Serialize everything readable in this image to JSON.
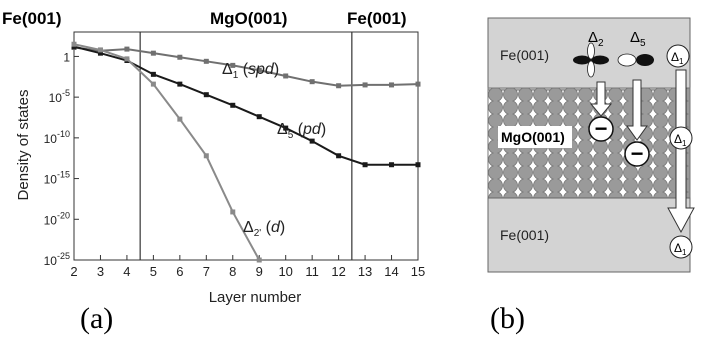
{
  "panel_a": {
    "caption": "(a)",
    "region_labels": [
      "Fe(001)",
      "MgO(001)",
      "Fe(001)"
    ],
    "ylabel": "Density of states",
    "xlabel": "Layer number",
    "chart_data": {
      "type": "line",
      "xlabel": "Layer number",
      "ylabel": "Density of states",
      "xlim": [
        2,
        15
      ],
      "ylim_log10": [
        -25,
        3
      ],
      "x_ticks": [
        "2",
        "3",
        "4",
        "5",
        "6",
        "7",
        "8",
        "9",
        "10",
        "11",
        "12",
        "13",
        "14",
        "15"
      ],
      "y_ticks": [
        {
          "base": "1",
          "exp": ""
        },
        {
          "base": "10",
          "exp": "-5"
        },
        {
          "base": "10",
          "exp": "-10"
        },
        {
          "base": "10",
          "exp": "-15"
        },
        {
          "base": "10",
          "exp": "-20"
        },
        {
          "base": "10",
          "exp": "-25"
        }
      ],
      "y_tick_values_log10": [
        0,
        -5,
        -10,
        -15,
        -20,
        -25
      ],
      "interface_lines_x": [
        4.5,
        12.5
      ],
      "series": [
        {
          "name_main": "Δ",
          "name_sub": "1",
          "name_paren_open": " (",
          "name_orbital": "spd",
          "name_paren_close": ")",
          "color": "#707070",
          "x": [
            2,
            3,
            4,
            5,
            6,
            7,
            8,
            9,
            10,
            11,
            12,
            13,
            14,
            15
          ],
          "log10_y": [
            1.1,
            0.7,
            0.9,
            0.4,
            -0.1,
            -0.6,
            -1.1,
            -1.7,
            -2.4,
            -3.1,
            -3.6,
            -3.5,
            -3.5,
            -3.4
          ]
        },
        {
          "name_main": "Δ",
          "name_sub": "5",
          "name_paren_open": " (",
          "name_orbital": "pd",
          "name_paren_close": ")",
          "color": "#1a1a1a",
          "x": [
            2,
            3,
            4,
            5,
            6,
            7,
            8,
            9,
            10,
            11,
            12,
            13,
            14,
            15
          ],
          "log10_y": [
            1.2,
            0.4,
            -0.5,
            -2.2,
            -3.4,
            -4.7,
            -6.0,
            -7.4,
            -8.8,
            -10.4,
            -12.2,
            -13.3,
            -13.3,
            -13.3
          ]
        },
        {
          "name_main": "Δ",
          "name_sub": "2'",
          "name_paren_open": " (",
          "name_orbital": "d",
          "name_paren_close": ")",
          "color": "#8a8a8a",
          "x": [
            2,
            3,
            4,
            5,
            6,
            7,
            8,
            9
          ],
          "log10_y": [
            1.5,
            0.8,
            -0.3,
            -3.4,
            -7.7,
            -12.2,
            -19.1,
            -25
          ]
        }
      ]
    }
  },
  "panel_b": {
    "caption": "(b)",
    "fe_top_label": "Fe(001)",
    "fe_bottom_label": "Fe(001)",
    "mgo_label": "MgO(001)",
    "delta_symbol": "Δ",
    "delta2_sub": "2",
    "delta5_sub": "5",
    "delta1_sub": "1",
    "minus_symbol": "−"
  }
}
